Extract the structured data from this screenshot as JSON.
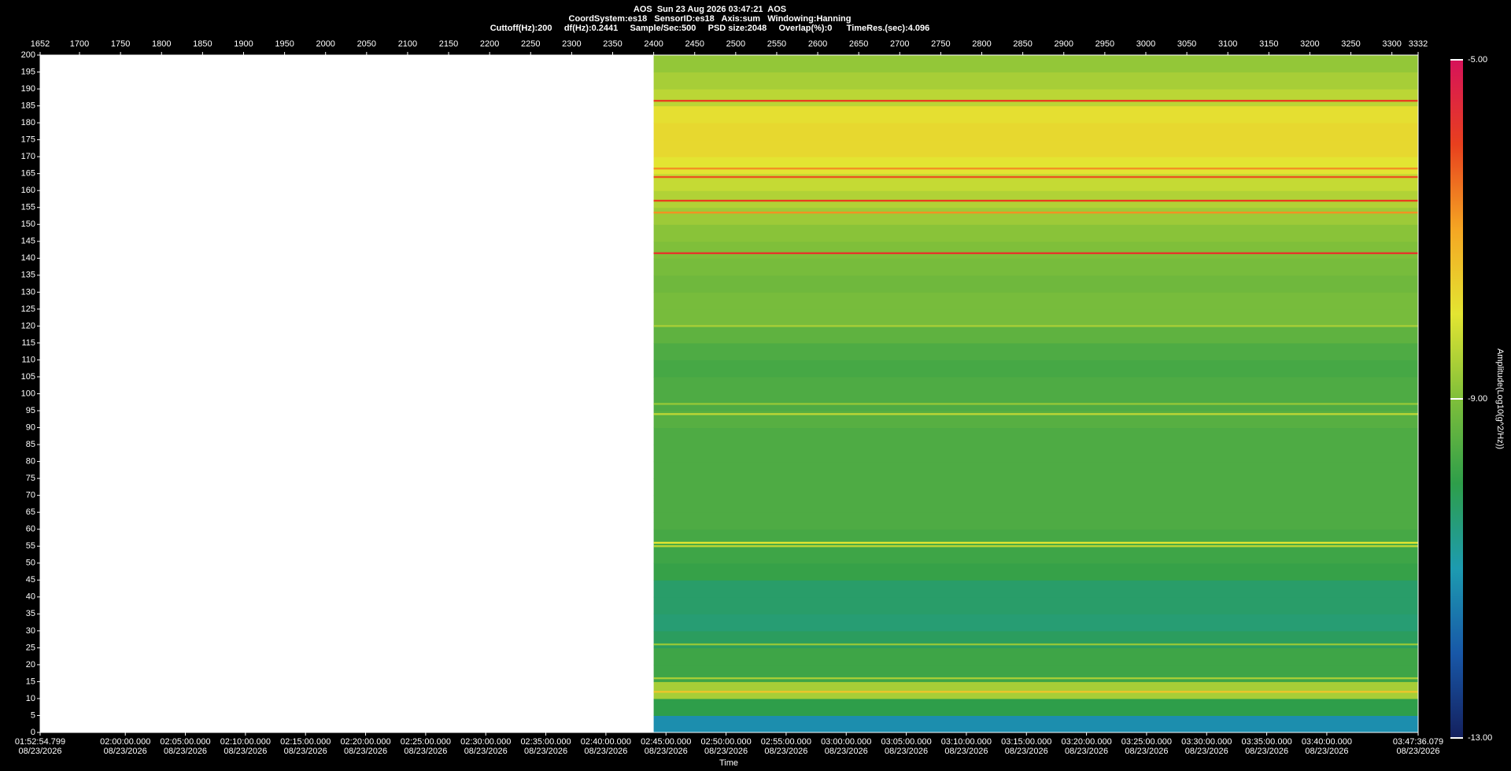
{
  "chart_data": {
    "type": "spectrogram",
    "title": "AOS  Sun 23 Aug 2026 03:47:21  AOS",
    "subtitle_lines": [
      "CoordSystem:es18   SensorID:es18   Axis:sum   Windowing:Hanning",
      "Cuttoff(Hz):200     df(Hz):0.2441     Sample/Sec:500     PSD size:2048     Overlap(%):0      TimeRes.(sec):4.096"
    ],
    "x_label": "Time",
    "xlim": [
      1652,
      3332
    ],
    "xticks": [
      1652,
      1700,
      1750,
      1800,
      1850,
      1900,
      1950,
      2000,
      2050,
      2100,
      2150,
      2200,
      2250,
      2300,
      2350,
      2400,
      2450,
      2500,
      2550,
      2600,
      2650,
      2700,
      2750,
      2800,
      2850,
      2900,
      2950,
      3000,
      3050,
      3100,
      3150,
      3200,
      3250,
      3300,
      3332
    ],
    "time_ticks": [
      {
        "value": 1652,
        "label": "01:52:54.799"
      },
      {
        "value": 1755.82,
        "label": "02:00:00.000"
      },
      {
        "value": 1829.06,
        "label": "02:05:00.000"
      },
      {
        "value": 1902.3,
        "label": "02:10:00.000"
      },
      {
        "value": 1975.54,
        "label": "02:15:00.000"
      },
      {
        "value": 2048.79,
        "label": "02:20:00.000"
      },
      {
        "value": 2122.03,
        "label": "02:25:00.000"
      },
      {
        "value": 2195.27,
        "label": "02:30:00.000"
      },
      {
        "value": 2268.51,
        "label": "02:35:00.000"
      },
      {
        "value": 2341.75,
        "label": "02:40:00.000"
      },
      {
        "value": 2414.99,
        "label": "02:45:00.000"
      },
      {
        "value": 2488.23,
        "label": "02:50:00.000"
      },
      {
        "value": 2561.47,
        "label": "02:55:00.000"
      },
      {
        "value": 2634.72,
        "label": "03:00:00.000"
      },
      {
        "value": 2707.96,
        "label": "03:05:00.000"
      },
      {
        "value": 2781.2,
        "label": "03:10:00.000"
      },
      {
        "value": 2854.44,
        "label": "03:15:00.000"
      },
      {
        "value": 2927.68,
        "label": "03:20:00.000"
      },
      {
        "value": 3000.92,
        "label": "03:25:00.000"
      },
      {
        "value": 3074.16,
        "label": "03:30:00.000"
      },
      {
        "value": 3147.4,
        "label": "03:35:00.000"
      },
      {
        "value": 3220.65,
        "label": "03:40:00.000"
      },
      {
        "value": 3332,
        "label": "03:47:36.079"
      }
    ],
    "time_tick_date": "08/23/2026",
    "ylim": [
      0,
      200
    ],
    "yticks": [
      0,
      5,
      10,
      15,
      20,
      25,
      30,
      35,
      40,
      45,
      50,
      55,
      60,
      65,
      70,
      75,
      80,
      85,
      90,
      95,
      100,
      105,
      110,
      115,
      120,
      125,
      130,
      135,
      140,
      145,
      150,
      155,
      160,
      165,
      170,
      175,
      180,
      185,
      190,
      195,
      200
    ],
    "data_xlim": [
      2400,
      3332
    ],
    "freq_bins": [
      0,
      5,
      10,
      15,
      20,
      25,
      30,
      35,
      40,
      45,
      50,
      55,
      60,
      65,
      70,
      75,
      80,
      85,
      90,
      95,
      100,
      105,
      110,
      115,
      120,
      125,
      130,
      135,
      140,
      145,
      150,
      155,
      160,
      165,
      170,
      175,
      180,
      185,
      190,
      195,
      200
    ],
    "amplitude": [
      -11.2,
      -10.0,
      -8.6,
      -9.8,
      -9.8,
      -10.2,
      -10.4,
      -10.3,
      -10.3,
      -9.9,
      -9.8,
      -9.7,
      -9.6,
      -9.6,
      -9.6,
      -9.6,
      -9.6,
      -9.6,
      -9.5,
      -9.6,
      -9.6,
      -9.7,
      -9.6,
      -9.4,
      -9.1,
      -9.1,
      -9.2,
      -9.1,
      -9.0,
      -8.9,
      -8.7,
      -8.5,
      -8.3,
      -8.0,
      -7.8,
      -7.8,
      -7.9,
      -8.4,
      -8.6,
      -8.8
    ],
    "lines": [
      {
        "freq": 186.5,
        "amplitude": -6.0
      },
      {
        "freq": 166.5,
        "amplitude": -6.8
      },
      {
        "freq": 164,
        "amplitude": -6.2
      },
      {
        "freq": 157,
        "amplitude": -6.0
      },
      {
        "freq": 153.5,
        "amplitude": -6.8
      },
      {
        "freq": 141.5,
        "amplitude": -5.8
      },
      {
        "freq": 120,
        "amplitude": -8.6
      },
      {
        "freq": 97,
        "amplitude": -8.8
      },
      {
        "freq": 94,
        "amplitude": -8.4
      },
      {
        "freq": 56,
        "amplitude": -8.0
      },
      {
        "freq": 55,
        "amplitude": -8.4
      },
      {
        "freq": 26,
        "amplitude": -8.8
      },
      {
        "freq": 16,
        "amplitude": -8.6
      },
      {
        "freq": 12,
        "amplitude": -7.5
      }
    ],
    "colorbar": {
      "label": "Amplitude(Log10(g^2/Hz))",
      "lim": [
        -13,
        -5
      ],
      "ticks": [
        {
          "value": -5,
          "label": "-5.00"
        },
        {
          "value": -9,
          "label": "-9.00"
        },
        {
          "value": -13,
          "label": "-13.00"
        }
      ],
      "colors": [
        "#14205e",
        "#1858a8",
        "#1d9bb0",
        "#2e9e4a",
        "#7fbf3a",
        "#e3e532",
        "#f5a623",
        "#e8401e",
        "#d6125a"
      ]
    }
  }
}
